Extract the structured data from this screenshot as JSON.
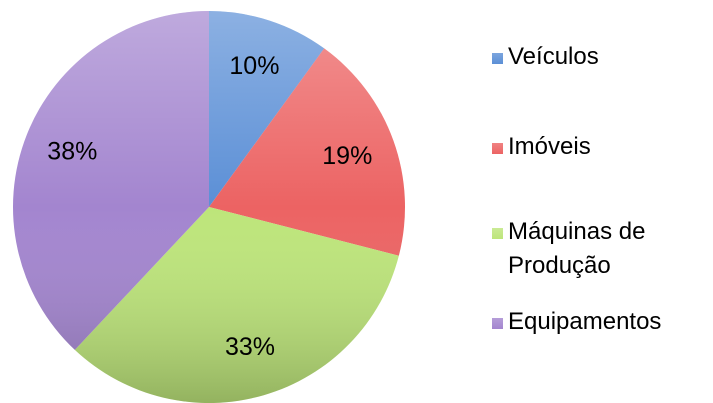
{
  "chart_data": {
    "type": "pie",
    "categories": [
      "Veículos",
      "Imóveis",
      "Máquinas de Produção",
      "Equipamentos"
    ],
    "values": [
      10,
      19,
      33,
      38
    ],
    "value_labels": [
      "10%",
      "19%",
      "33%",
      "38%"
    ],
    "colors": [
      "#5b8fd6",
      "#ec6363",
      "#bde57a",
      "#a385cf"
    ],
    "legend": "right"
  }
}
